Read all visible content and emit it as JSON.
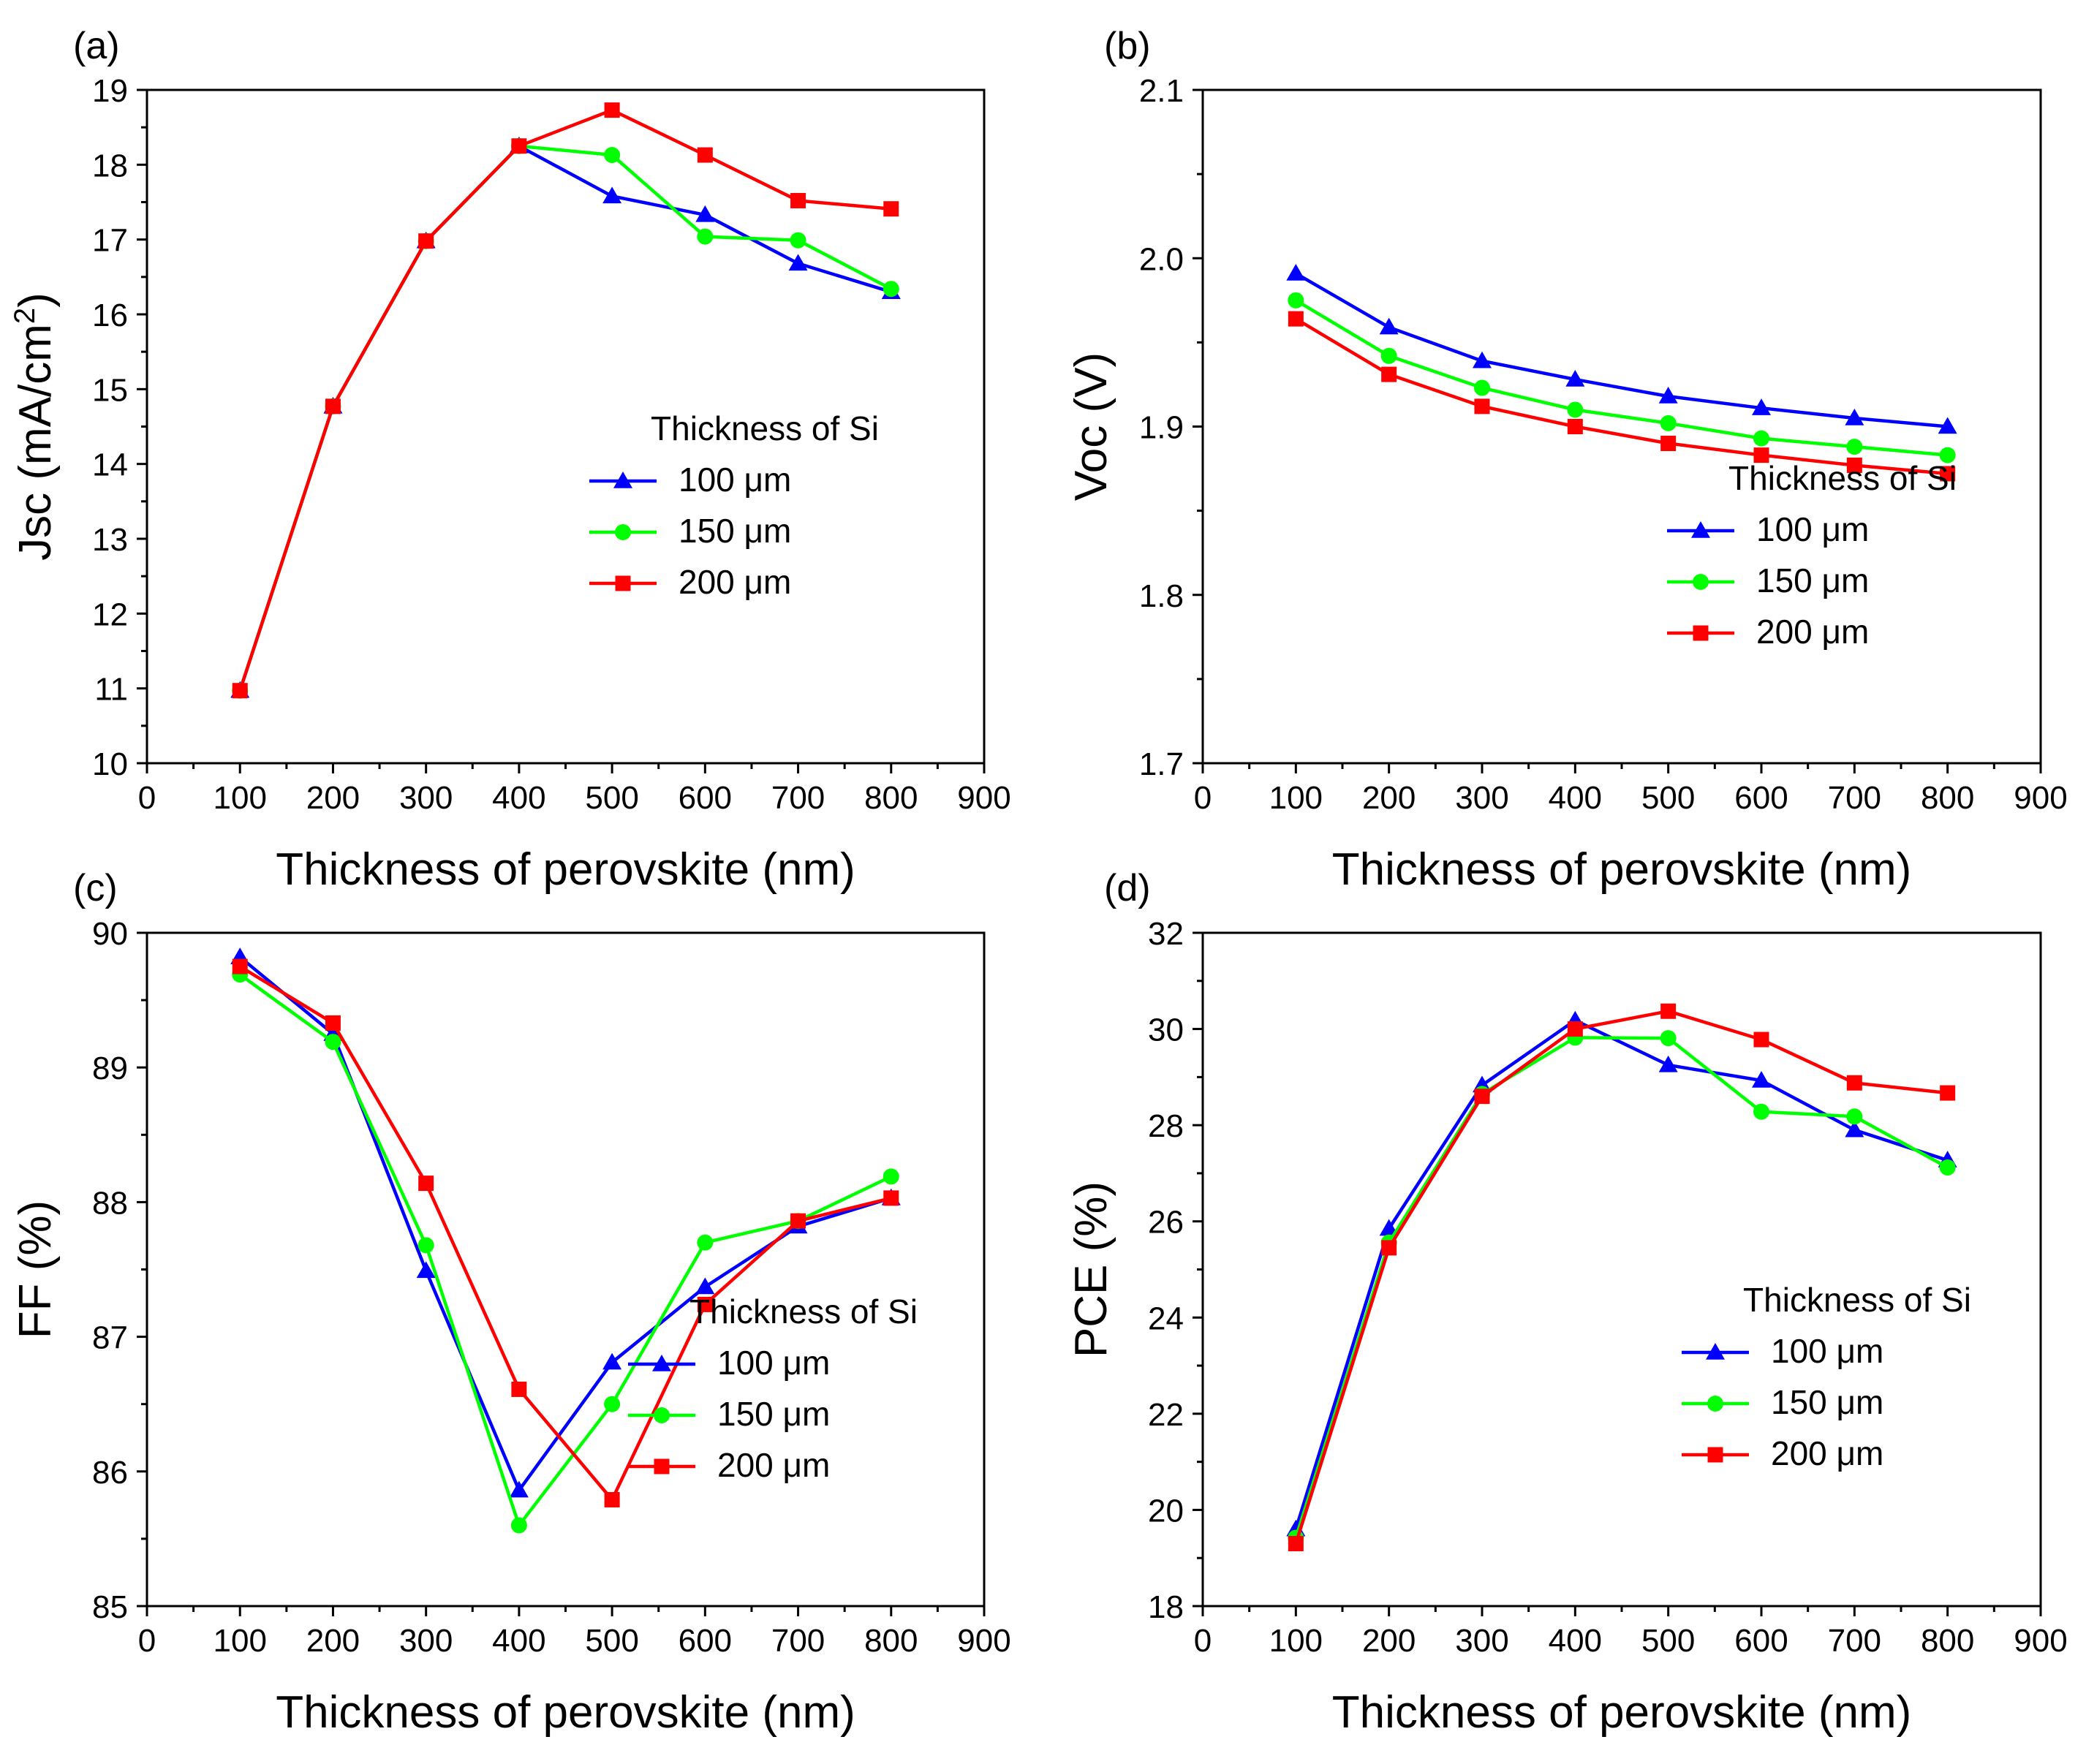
{
  "chart_data": [
    {
      "type": "line",
      "panel_label": "(a)",
      "xlabel": "Thickness of perovskite (nm)",
      "ylabel_main": "Jsc (mA/cm",
      "ylabel_sup": "2",
      "ylabel_tail": ")",
      "xlim": [
        0,
        900
      ],
      "ylim": [
        10,
        19
      ],
      "xticks": [
        0,
        100,
        200,
        300,
        400,
        500,
        600,
        700,
        800,
        900
      ],
      "xtick_labels": [
        "0",
        "100",
        "200",
        "300",
        "400",
        "500",
        "600",
        "700",
        "800",
        "900"
      ],
      "yticks": [
        10,
        11,
        12,
        13,
        14,
        15,
        16,
        17,
        18,
        19
      ],
      "ytick_labels": [
        "10",
        "11",
        "12",
        "13",
        "14",
        "15",
        "16",
        "17",
        "18",
        "19"
      ],
      "x": [
        100,
        200,
        300,
        400,
        500,
        600,
        700,
        800
      ],
      "legend_title": "Thickness of Si",
      "legend_position": "center-right",
      "series": [
        {
          "name": "100 μm",
          "color": "#0000ff",
          "marker": "triangle",
          "values": [
            10.97,
            14.77,
            16.98,
            18.25,
            17.58,
            17.33,
            16.68,
            16.3
          ]
        },
        {
          "name": "150 μm",
          "color": "#00ff00",
          "marker": "circle",
          "values": [
            10.97,
            14.77,
            16.98,
            18.25,
            18.13,
            17.04,
            16.99,
            16.34
          ]
        },
        {
          "name": "200 μm",
          "color": "#ff0000",
          "marker": "square",
          "values": [
            10.97,
            14.77,
            16.98,
            18.25,
            18.73,
            18.13,
            17.52,
            17.41
          ]
        }
      ]
    },
    {
      "type": "line",
      "panel_label": "(b)",
      "xlabel": "Thickness of perovskite (nm)",
      "ylabel_main": "Voc (V)",
      "xlim": [
        0,
        900
      ],
      "ylim": [
        1.7,
        2.1
      ],
      "xticks": [
        0,
        100,
        200,
        300,
        400,
        500,
        600,
        700,
        800,
        900
      ],
      "xtick_labels": [
        "0",
        "100",
        "200",
        "300",
        "400",
        "500",
        "600",
        "700",
        "800",
        "900"
      ],
      "yticks": [
        1.7,
        1.8,
        1.9,
        2.0,
        2.1
      ],
      "ytick_labels": [
        "1.7",
        "1.8",
        "1.9",
        "2.0",
        "2.1"
      ],
      "x": [
        100,
        200,
        300,
        400,
        500,
        600,
        700,
        800
      ],
      "legend_title": "Thickness of Si",
      "legend_position": "lower-right",
      "series": [
        {
          "name": "100 μm",
          "color": "#0000ff",
          "marker": "triangle",
          "values": [
            1.991,
            1.959,
            1.939,
            1.928,
            1.918,
            1.911,
            1.905,
            1.9
          ]
        },
        {
          "name": "150 μm",
          "color": "#00ff00",
          "marker": "circle",
          "values": [
            1.975,
            1.942,
            1.923,
            1.91,
            1.902,
            1.893,
            1.888,
            1.883
          ]
        },
        {
          "name": "200 μm",
          "color": "#ff0000",
          "marker": "square",
          "values": [
            1.964,
            1.931,
            1.912,
            1.9,
            1.89,
            1.883,
            1.877,
            1.872
          ]
        }
      ]
    },
    {
      "type": "line",
      "panel_label": "(c)",
      "xlabel": "Thickness of perovskite (nm)",
      "ylabel_main": "FF (%)",
      "xlim": [
        0,
        900
      ],
      "ylim": [
        85,
        90
      ],
      "xticks": [
        0,
        100,
        200,
        300,
        400,
        500,
        600,
        700,
        800,
        900
      ],
      "xtick_labels": [
        "0",
        "100",
        "200",
        "300",
        "400",
        "500",
        "600",
        "700",
        "800",
        "900"
      ],
      "yticks": [
        85,
        86,
        87,
        88,
        89,
        90
      ],
      "ytick_labels": [
        "85",
        "86",
        "87",
        "88",
        "89",
        "90"
      ],
      "x": [
        100,
        200,
        300,
        400,
        500,
        600,
        700,
        800
      ],
      "legend_title": "Thickness of Si",
      "legend_position": "lower-right",
      "series": [
        {
          "name": "100 μm",
          "color": "#0000ff",
          "marker": "triangle",
          "values": [
            89.82,
            89.25,
            87.49,
            85.86,
            86.81,
            87.37,
            87.82,
            88.03
          ]
        },
        {
          "name": "150 μm",
          "color": "#00ff00",
          "marker": "circle",
          "values": [
            89.69,
            89.19,
            87.68,
            85.6,
            86.5,
            87.7,
            87.86,
            88.19
          ]
        },
        {
          "name": "200 μm",
          "color": "#ff0000",
          "marker": "square",
          "values": [
            89.75,
            89.33,
            88.14,
            86.61,
            85.79,
            87.24,
            87.86,
            88.03
          ]
        }
      ]
    },
    {
      "type": "line",
      "panel_label": "(d)",
      "xlabel": "Thickness of perovskite (nm)",
      "ylabel_main": "PCE (%)",
      "xlim": [
        0,
        900
      ],
      "ylim": [
        18,
        32
      ],
      "xticks": [
        0,
        100,
        200,
        300,
        400,
        500,
        600,
        700,
        800,
        900
      ],
      "xtick_labels": [
        "0",
        "100",
        "200",
        "300",
        "400",
        "500",
        "600",
        "700",
        "800",
        "900"
      ],
      "yticks": [
        18,
        20,
        22,
        24,
        26,
        28,
        30,
        32
      ],
      "ytick_labels": [
        "18",
        "20",
        "22",
        "24",
        "26",
        "28",
        "30",
        "32"
      ],
      "x": [
        100,
        200,
        300,
        400,
        500,
        600,
        700,
        800
      ],
      "legend_title": "Thickness of Si",
      "legend_position": "lower-right",
      "series": [
        {
          "name": "100 μm",
          "color": "#0000ff",
          "marker": "triangle",
          "values": [
            19.6,
            25.85,
            28.83,
            30.18,
            29.25,
            28.93,
            27.9,
            27.27
          ]
        },
        {
          "name": "150 μm",
          "color": "#00ff00",
          "marker": "circle",
          "values": [
            19.42,
            25.56,
            28.65,
            29.82,
            29.81,
            28.28,
            28.18,
            27.12
          ]
        },
        {
          "name": "200 μm",
          "color": "#ff0000",
          "marker": "square",
          "values": [
            19.3,
            25.45,
            28.6,
            30.0,
            30.37,
            29.78,
            28.88,
            28.67
          ]
        }
      ]
    }
  ]
}
